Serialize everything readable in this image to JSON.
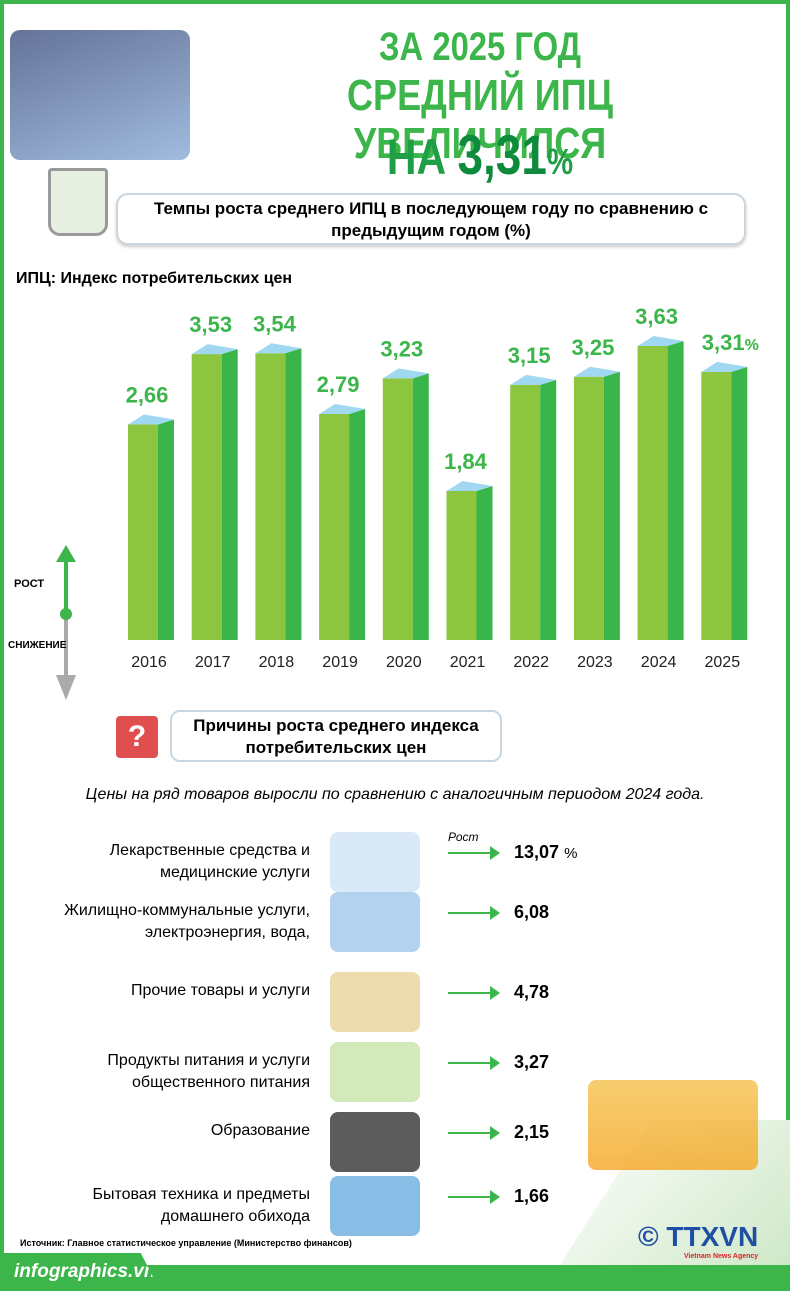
{
  "title": {
    "line1": "ЗА 2025 ГОД",
    "line2": "СРЕДНИЙ ИПЦ УВЕЛИЧИЛСЯ",
    "line3_prefix": "НА",
    "line3_value": "3,31",
    "line3_unit": "%"
  },
  "subtitle": "Темпы роста среднего ИПЦ в последующем году по сравнению с предыдущим годом (%)",
  "note": "ИПЦ: Индекс потребительских цен",
  "legend": {
    "up": "РОСТ",
    "down": "СНИЖЕНИЕ"
  },
  "colors": {
    "brand": "#3cb54a",
    "bar_front": "#8cc63f",
    "bar_side": "#3ab54a",
    "bar_top": "#9fd8f0",
    "value_text": "#3cb54a"
  },
  "chart_data": {
    "type": "bar",
    "categories": [
      "2016",
      "2017",
      "2018",
      "2019",
      "2020",
      "2021",
      "2022",
      "2023",
      "2024",
      "2025"
    ],
    "values": [
      2.66,
      3.53,
      3.54,
      2.79,
      3.23,
      1.84,
      3.15,
      3.25,
      3.63,
      3.31
    ],
    "labels": [
      "2,66",
      "3,53",
      "3,54",
      "2,79",
      "3,23",
      "1,84",
      "3,15",
      "3,25",
      "3,63",
      "3,31"
    ],
    "last_label_unit": "%",
    "ylim": [
      0,
      4.2
    ],
    "grid": false
  },
  "reasons": {
    "title": "Причины роста среднего индекса потребительских цен",
    "lead": "Цены на ряд товаров выросли по сравнению с аналогичным периодом 2024 года.",
    "growth_label": "Рост",
    "items": [
      {
        "label": "Лекарственные средства и медицинские услуги",
        "value": "13,07",
        "unit": "%",
        "icon": "medicine-icon"
      },
      {
        "label": "Жилищно-коммунальные услуги, электроэнергия, вода,",
        "value": "6,08",
        "icon": "utilities-icon"
      },
      {
        "label": "Прочие товары и услуги",
        "value": "4,78",
        "icon": "goods-icon"
      },
      {
        "label": "Продукты питания и услуги общественного питания",
        "value": "3,27",
        "icon": "food-icon"
      },
      {
        "label": "Образование",
        "value": "2,15",
        "icon": "graduation-cap-icon"
      },
      {
        "label": "Бытовая техника и предметы домашнего обихода",
        "value": "1,66",
        "icon": "appliances-icon"
      }
    ]
  },
  "source": "Источник: Главное статистическое управление (Министерство финансов)",
  "footer": {
    "site": "infographics.vn",
    "copyright": "©",
    "agency": "TTXVN",
    "agency_sub": "Vietnam News Agency"
  }
}
